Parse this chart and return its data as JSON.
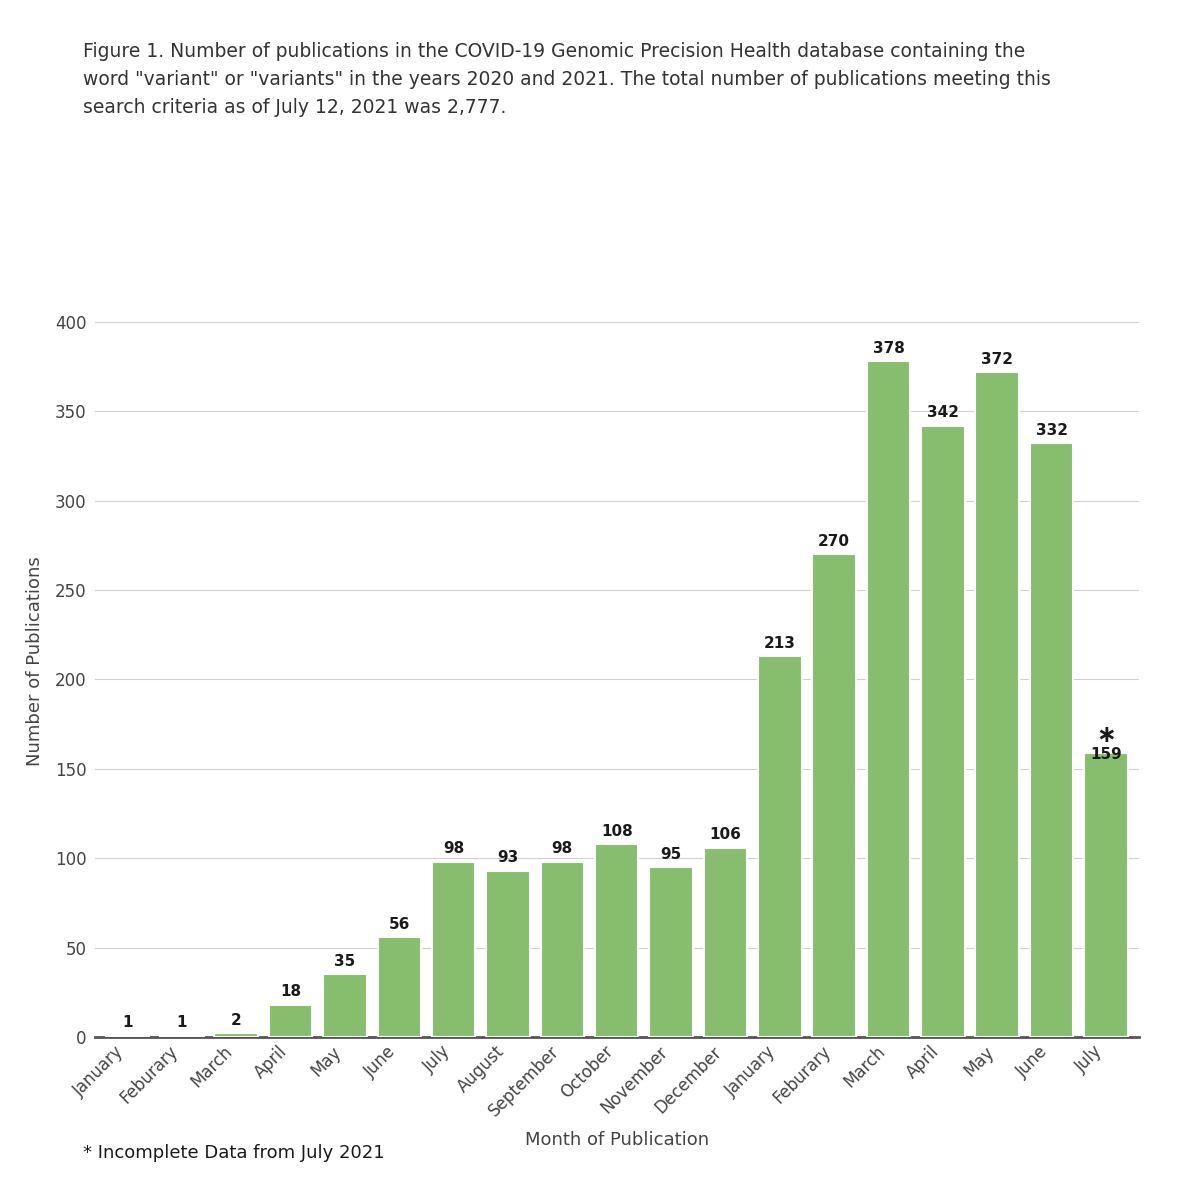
{
  "title_line1": "Figure 1. Number of publications in the COVID-19 Genomic Precision Health database containing the",
  "title_line2": "word \"variant\" or \"variants\" in the years 2020 and 2021. The total number of publications meeting this",
  "title_line3": "search criteria as of July 12, 2021 was 2,777.",
  "categories": [
    "January",
    "Feburary",
    "March",
    "April",
    "May",
    "June",
    "July",
    "August",
    "September",
    "October",
    "November",
    "December",
    "January",
    "Feburary",
    "March",
    "April",
    "May",
    "June",
    "July"
  ],
  "values": [
    1,
    1,
    2,
    18,
    35,
    56,
    98,
    93,
    98,
    108,
    95,
    106,
    213,
    270,
    378,
    342,
    372,
    332,
    159
  ],
  "bar_color": "#87be6e",
  "bar_edge_color": "#ffffff",
  "xlabel": "Month of Publication",
  "ylabel": "Number of Publications",
  "ylim": [
    0,
    420
  ],
  "yticks": [
    0,
    50,
    100,
    150,
    200,
    250,
    300,
    350,
    400
  ],
  "footnote": "* Incomplete Data from July 2021",
  "asterisk_index": 18,
  "background_color": "#ffffff",
  "grid_color": "#d0d0d0",
  "title_fontsize": 13.5,
  "label_fontsize": 13,
  "tick_fontsize": 12,
  "value_fontsize": 11,
  "footnote_fontsize": 13
}
